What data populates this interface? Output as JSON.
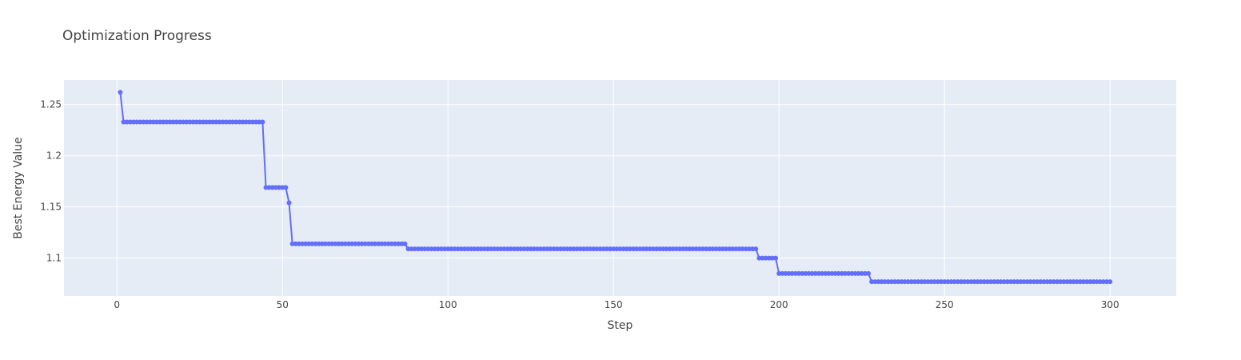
{
  "chart_data": {
    "type": "line",
    "title": "Optimization Progress",
    "xlabel": "Step",
    "ylabel": "Best Energy Value",
    "xlim": [
      -16,
      320
    ],
    "ylim": [
      1.063,
      1.274
    ],
    "xticks": [
      0,
      50,
      100,
      150,
      200,
      250,
      300
    ],
    "yticks": [
      1.1,
      1.15,
      1.2,
      1.25
    ],
    "xtick_labels": [
      "0",
      "50",
      "100",
      "150",
      "200",
      "250",
      "300"
    ],
    "ytick_labels": [
      "1.1",
      "1.15",
      "1.2",
      "1.25"
    ],
    "grid": true,
    "background_color": "#e5ecf6",
    "line_color": "#636efa",
    "marker": "circle",
    "series": [
      {
        "segments": [
          {
            "x_start": 1,
            "x_end": 1,
            "y": 1.262
          },
          {
            "x_start": 2,
            "x_end": 44,
            "y": 1.233
          },
          {
            "x_start": 45,
            "x_end": 51,
            "y": 1.169
          },
          {
            "x_start": 52,
            "x_end": 52,
            "y": 1.154
          },
          {
            "x_start": 53,
            "x_end": 87,
            "y": 1.114
          },
          {
            "x_start": 88,
            "x_end": 193,
            "y": 1.109
          },
          {
            "x_start": 194,
            "x_end": 199,
            "y": 1.1
          },
          {
            "x_start": 200,
            "x_end": 227,
            "y": 1.085
          },
          {
            "x_start": 228,
            "x_end": 300,
            "y": 1.077
          }
        ]
      }
    ]
  }
}
